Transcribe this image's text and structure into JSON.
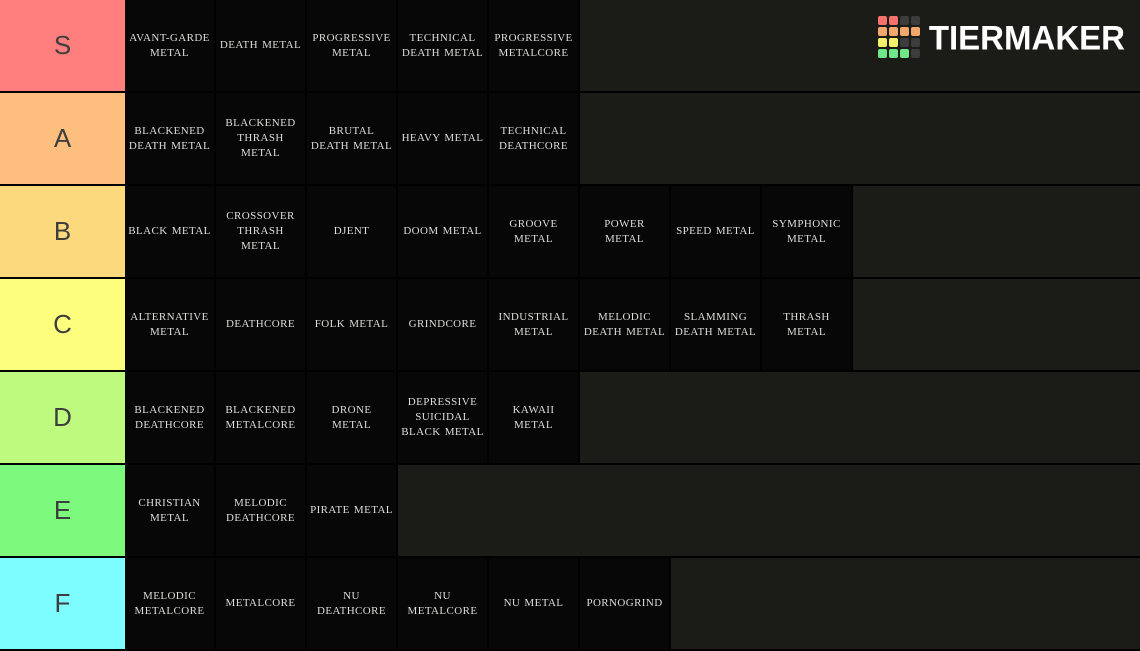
{
  "app": {
    "logo_text": "TIERMAKER",
    "logo_grid_colors": [
      "#F4726D",
      "#F4726D",
      "#3C3C3C",
      "#3C3C3C",
      "#F2A76C",
      "#F2A76C",
      "#F2A76C",
      "#F2A76C",
      "#F4F06C",
      "#F4F06C",
      "#3C3C3C",
      "#3C3C3C",
      "#6FE687",
      "#6FE687",
      "#6FE687",
      "#3C3C3C"
    ]
  },
  "colors": {
    "page_background": "#000000",
    "row_background": "#1b1b18",
    "tile_background": "#070707",
    "tile_text": "#dddddb",
    "label_text": "#3e3e3e"
  },
  "tiers": [
    {
      "label": "S",
      "color": "#FF7F7E",
      "items": [
        "AVANT-GARDE METAL",
        "DEATH METAL",
        "PROGRESSIVE METAL",
        "TECHNICAL DEATH METAL",
        "PROGRESSIVE METALCORE"
      ]
    },
    {
      "label": "A",
      "color": "#FEBE7E",
      "items": [
        "BLACKENED DEATH METAL",
        "BLACKENED THRASH METAL",
        "BRUTAL DEATH METAL",
        "HEAVY METAL",
        "TECHNICAL DEATHCORE"
      ]
    },
    {
      "label": "B",
      "color": "#FDD97E",
      "items": [
        "BLACK METAL",
        "CROSSOVER THRASH METAL",
        "DJENT",
        "DOOM METAL",
        "GROOVE METAL",
        "POWER METAL",
        "SPEED METAL",
        "SYMPHONIC METAL"
      ]
    },
    {
      "label": "C",
      "color": "#FEFE7E",
      "items": [
        "ALTERNATIVE METAL",
        "DEATHCORE",
        "FOLK METAL",
        "GRINDCORE",
        "INDUSTRIAL METAL",
        "MELODIC DEATH METAL",
        "SLAMMING DEATH METAL",
        "THRASH METAL"
      ]
    },
    {
      "label": "D",
      "color": "#BEFA7D",
      "items": [
        "BLACKENED DEATHCORE",
        "BLACKENED METALCORE",
        "DRONE METAL",
        "DEPRESSIVE SUICIDAL BLACK METAL",
        "KAWAII METAL"
      ]
    },
    {
      "label": "E",
      "color": "#7DFA7E",
      "items": [
        "CHRISTIAN METAL",
        "MELODIC DEATHCORE",
        "PIRATE METAL"
      ]
    },
    {
      "label": "F",
      "color": "#7DFDFF",
      "items": [
        "MELODIC METALCORE",
        "METALCORE",
        "NU DEATHCORE",
        "NU METALCORE",
        "NU METAL",
        "PORNOGRIND"
      ]
    }
  ]
}
